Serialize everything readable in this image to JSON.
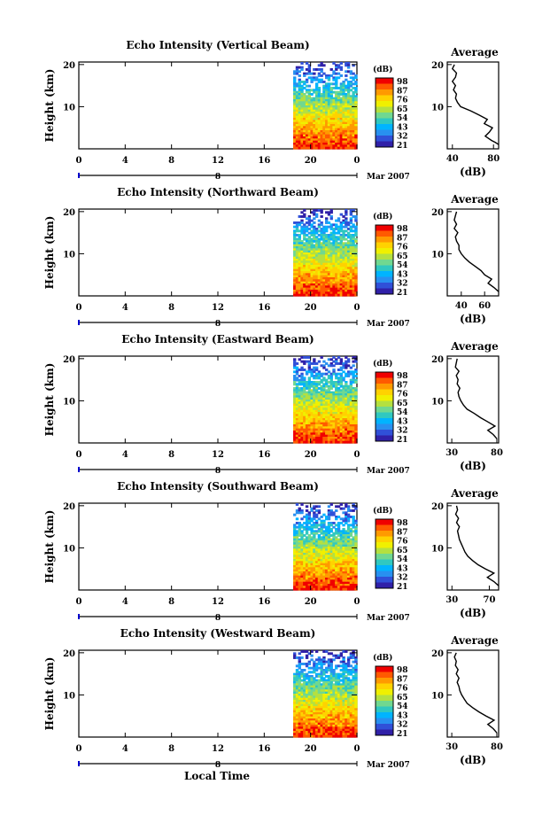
{
  "figure": {
    "xlabel": "Local Time",
    "colorbar": {
      "unit": "(dB)",
      "ticks": [
        "98",
        "87",
        "76",
        "65",
        "54",
        "43",
        "32",
        "21"
      ],
      "colors": [
        "#f00000",
        "#ff5a00",
        "#ff9a00",
        "#ffd200",
        "#f0f000",
        "#b4e040",
        "#70d890",
        "#30c8c0",
        "#00b4ff",
        "#2890f0",
        "#3050d8",
        "#3020a8"
      ]
    }
  },
  "chart_data": [
    {
      "type": "heatmap",
      "title": "Echo Intensity (Vertical Beam)",
      "ylabel": "Height (km)",
      "yticks": [
        "20",
        "10"
      ],
      "xticks": [
        "0",
        "4",
        "8",
        "12",
        "16",
        "20",
        "0"
      ],
      "date_mark": "8",
      "date_label": "Mar 2007",
      "data_start_hour": 18.5,
      "avg": {
        "title": "Average",
        "xlabel": "(dB)",
        "xticks": [
          "40",
          "80"
        ],
        "yticks": [
          "20",
          "10"
        ],
        "x_range": [
          35,
          85
        ],
        "profile": [
          [
            85,
            1
          ],
          [
            82,
            1.5
          ],
          [
            78,
            2
          ],
          [
            72,
            3
          ],
          [
            76,
            4
          ],
          [
            79,
            5
          ],
          [
            71,
            6
          ],
          [
            74,
            7
          ],
          [
            66,
            8
          ],
          [
            58,
            9
          ],
          [
            48,
            10
          ],
          [
            45,
            11
          ],
          [
            43,
            12
          ],
          [
            44,
            13
          ],
          [
            41,
            14
          ],
          [
            43,
            15
          ],
          [
            40,
            16
          ],
          [
            43,
            17
          ],
          [
            44,
            18
          ],
          [
            40,
            19
          ],
          [
            42,
            20
          ]
        ]
      }
    },
    {
      "type": "heatmap",
      "title": "Echo Intensity (Northward Beam)",
      "ylabel": "Height (km)",
      "yticks": [
        "20",
        "10"
      ],
      "xticks": [
        "0",
        "4",
        "8",
        "12",
        "16",
        "20",
        "0"
      ],
      "date_mark": "8",
      "date_label": "Mar 2007",
      "data_start_hour": 18.5,
      "avg": {
        "title": "Average",
        "xlabel": "(dB)",
        "xticks": [
          "40",
          "60"
        ],
        "yticks": [
          "20",
          "10"
        ],
        "x_range": [
          28,
          72
        ],
        "profile": [
          [
            72,
            1
          ],
          [
            68,
            2
          ],
          [
            63,
            3
          ],
          [
            66,
            4
          ],
          [
            60,
            5
          ],
          [
            57,
            6
          ],
          [
            52,
            7
          ],
          [
            47,
            8
          ],
          [
            43,
            9
          ],
          [
            40,
            10
          ],
          [
            38,
            11
          ],
          [
            38,
            12
          ],
          [
            36,
            13
          ],
          [
            35,
            14
          ],
          [
            37,
            15
          ],
          [
            34,
            16
          ],
          [
            36,
            17
          ],
          [
            34,
            18
          ],
          [
            35,
            19
          ],
          [
            36,
            20
          ]
        ]
      }
    },
    {
      "type": "heatmap",
      "title": "Echo Intensity (Eastward Beam)",
      "ylabel": "Height (km)",
      "yticks": [
        "20",
        "10"
      ],
      "xticks": [
        "0",
        "4",
        "8",
        "12",
        "16",
        "20",
        "0"
      ],
      "date_mark": "8",
      "date_label": "Mar 2007",
      "data_start_hour": 18.5,
      "avg": {
        "title": "Average",
        "xlabel": "(dB)",
        "xticks": [
          "30",
          "80"
        ],
        "yticks": [
          "20",
          "10"
        ],
        "x_range": [
          25,
          82
        ],
        "profile": [
          [
            80,
            1
          ],
          [
            76,
            2
          ],
          [
            70,
            3
          ],
          [
            78,
            4
          ],
          [
            70,
            5
          ],
          [
            62,
            6
          ],
          [
            55,
            7
          ],
          [
            47,
            8
          ],
          [
            43,
            9
          ],
          [
            40,
            10
          ],
          [
            38,
            11
          ],
          [
            37,
            12
          ],
          [
            39,
            13
          ],
          [
            36,
            14
          ],
          [
            37,
            15
          ],
          [
            35,
            16
          ],
          [
            38,
            17
          ],
          [
            34,
            18
          ],
          [
            35,
            19
          ],
          [
            36,
            20
          ]
        ]
      }
    },
    {
      "type": "heatmap",
      "title": "Echo Intensity (Southward Beam)",
      "ylabel": "Height (km)",
      "yticks": [
        "20",
        "10"
      ],
      "xticks": [
        "0",
        "4",
        "8",
        "12",
        "16",
        "20",
        "0"
      ],
      "date_mark": "8",
      "date_label": "Mar 2007",
      "data_start_hour": 18.5,
      "avg": {
        "title": "Average",
        "xlabel": "(dB)",
        "xticks": [
          "30",
          "70"
        ],
        "yticks": [
          "20",
          "10"
        ],
        "x_range": [
          25,
          80
        ],
        "profile": [
          [
            80,
            1
          ],
          [
            75,
            2
          ],
          [
            68,
            3
          ],
          [
            75,
            4
          ],
          [
            66,
            5
          ],
          [
            58,
            6
          ],
          [
            52,
            7
          ],
          [
            47,
            8
          ],
          [
            44,
            9
          ],
          [
            42,
            10
          ],
          [
            40,
            11
          ],
          [
            38,
            12
          ],
          [
            37,
            13
          ],
          [
            36,
            14
          ],
          [
            38,
            15
          ],
          [
            35,
            16
          ],
          [
            37,
            17
          ],
          [
            34,
            18
          ],
          [
            36,
            19
          ],
          [
            35,
            20
          ]
        ]
      }
    },
    {
      "type": "heatmap",
      "title": "Echo Intensity (Westward Beam)",
      "ylabel": "Height (km)",
      "yticks": [
        "20",
        "10"
      ],
      "xticks": [
        "0",
        "4",
        "8",
        "12",
        "16",
        "20",
        "0"
      ],
      "date_mark": "8",
      "date_label": "Mar 2007",
      "data_start_hour": 18.5,
      "avg": {
        "title": "Average",
        "xlabel": "(dB)",
        "xticks": [
          "30",
          "80"
        ],
        "yticks": [
          "20",
          "10"
        ],
        "x_range": [
          25,
          82
        ],
        "profile": [
          [
            80,
            1
          ],
          [
            76,
            2
          ],
          [
            70,
            3
          ],
          [
            77,
            4
          ],
          [
            68,
            5
          ],
          [
            60,
            6
          ],
          [
            53,
            7
          ],
          [
            47,
            8
          ],
          [
            44,
            9
          ],
          [
            41,
            10
          ],
          [
            39,
            11
          ],
          [
            38,
            12
          ],
          [
            36,
            13
          ],
          [
            38,
            14
          ],
          [
            35,
            15
          ],
          [
            37,
            16
          ],
          [
            34,
            17
          ],
          [
            35,
            18
          ],
          [
            33,
            19
          ],
          [
            35,
            20
          ]
        ]
      }
    }
  ]
}
